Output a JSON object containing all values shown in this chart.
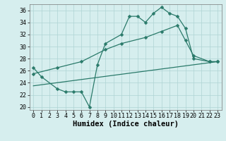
{
  "line1_x": [
    0,
    1,
    3,
    4,
    5,
    6,
    7,
    8,
    9,
    11,
    12,
    13,
    14,
    15,
    16,
    17,
    18,
    19,
    20,
    22,
    23
  ],
  "line1_y": [
    26.5,
    25,
    23,
    22.5,
    22.5,
    22.5,
    20,
    27,
    30.5,
    32,
    35,
    35,
    34,
    35.5,
    36.5,
    35.5,
    35,
    33,
    28,
    27.5,
    27.5
  ],
  "line2_x": [
    0,
    3,
    6,
    9,
    11,
    14,
    16,
    18,
    19,
    20,
    22,
    23
  ],
  "line2_y": [
    25.5,
    26.5,
    27.5,
    29.5,
    30.5,
    31.5,
    32.5,
    33.5,
    31,
    28.5,
    27.5,
    27.5
  ],
  "line3_x": [
    0,
    23
  ],
  "line3_y": [
    23.5,
    27.5
  ],
  "line_color": "#2a7a6a",
  "bg_color": "#d6eeee",
  "grid_color": "#aed4d4",
  "xlabel": "Humidex (Indice chaleur)",
  "ylim": [
    19.5,
    37.0
  ],
  "xlim": [
    -0.5,
    23.5
  ],
  "yticks": [
    20,
    22,
    24,
    26,
    28,
    30,
    32,
    34,
    36
  ],
  "xticks": [
    0,
    1,
    2,
    3,
    4,
    5,
    6,
    7,
    8,
    9,
    10,
    11,
    12,
    13,
    14,
    15,
    16,
    17,
    18,
    19,
    20,
    21,
    22,
    23
  ],
  "xlabel_fontsize": 7.5,
  "tick_fontsize": 6.0,
  "marker_size": 2.5,
  "line_width": 0.9
}
